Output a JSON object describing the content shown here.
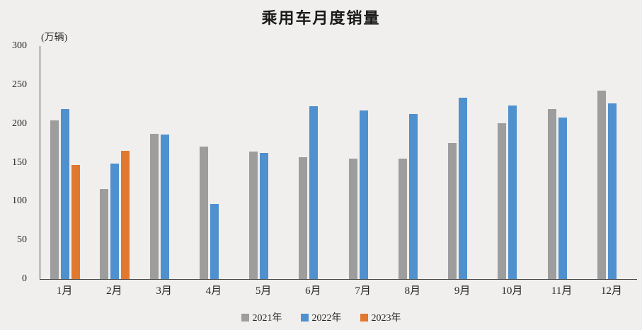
{
  "title": "乘用车月度销量",
  "unit_label": "(万辆)",
  "colors": {
    "series_2021": "#9d9d9d",
    "series_2022": "#4f90ce",
    "series_2023": "#e2772e",
    "axis": "#404040",
    "background": "#f0efed"
  },
  "chart_data": {
    "type": "bar",
    "title": "乘用车月度销量",
    "ylabel": "(万辆)",
    "xlabel": "",
    "ylim": [
      0,
      300
    ],
    "yticks": [
      300,
      250,
      200,
      150,
      100,
      50,
      0
    ],
    "grid": false,
    "legend_position": "bottom",
    "categories": [
      "1月",
      "2月",
      "3月",
      "4月",
      "5月",
      "6月",
      "7月",
      "8月",
      "9月",
      "10月",
      "11月",
      "12月"
    ],
    "series": [
      {
        "name": "2021年",
        "color": "#9d9d9d",
        "values": [
          204.5,
          115.6,
          187.4,
          170.4,
          164.6,
          156.9,
          155.1,
          155.2,
          175.1,
          200.7,
          219.2,
          242.2
        ]
      },
      {
        "name": "2022年",
        "color": "#4f90ce",
        "values": [
          218.6,
          148.7,
          186.4,
          96.5,
          162.3,
          222.2,
          217.4,
          212.5,
          233.2,
          223.1,
          207.8,
          226.3
        ]
      },
      {
        "name": "2023年",
        "color": "#e2772e",
        "values": [
          146.9,
          165.3,
          null,
          null,
          null,
          null,
          null,
          null,
          null,
          null,
          null,
          null
        ]
      }
    ]
  }
}
